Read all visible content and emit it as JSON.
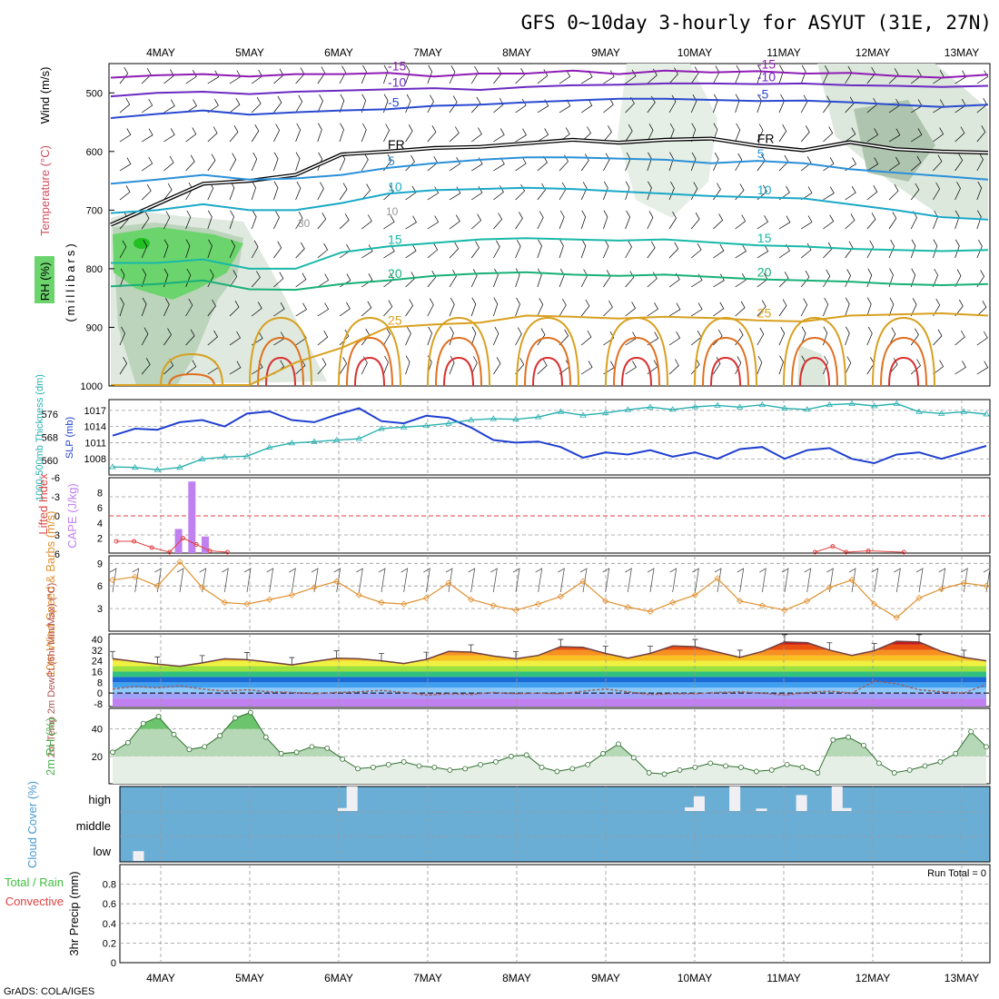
{
  "title": "GFS 0~10day 3-hourly for ASYUT (31E, 27N)",
  "footer": "GrADS: COLA/IGES",
  "colors": {
    "rh_green": "#6cd46c",
    "cloud_blue": "#6aaed6",
    "slp": "#1f3fd0",
    "thick": "#2ab0b0",
    "li": "#e04040",
    "cape": "#c080f0",
    "wind": "#e09030",
    "dew": "#a06060",
    "rh2m": "#50b050"
  },
  "chart_data": [
    {
      "panel": "upper-air cross-section",
      "type": "contour",
      "x_dates": [
        "4MAY",
        "5MAY",
        "6MAY",
        "7MAY",
        "8MAY",
        "9MAY",
        "10MAY",
        "11MAY",
        "12MAY",
        "13MAY"
      ],
      "y_ticks": [
        500,
        600,
        700,
        800,
        900,
        1000
      ],
      "ylabel": "(millibars)",
      "ylabel_series": [
        "RH (%)",
        "Temperature (°C)",
        "Wind (m/s)"
      ],
      "ylim": [
        1000,
        450
      ],
      "temperature_contours": [
        {
          "value": -15,
          "label": "-15",
          "color": "#8e1cb4",
          "p": [
            474,
            470,
            468,
            472,
            468,
            468,
            466,
            472,
            467,
            467,
            462,
            468,
            462,
            465,
            463,
            467,
            466,
            471,
            474,
            469
          ]
        },
        {
          "value": -10,
          "label": "-10",
          "color": "#6a2ac0",
          "p": [
            506,
            500,
            498,
            502,
            498,
            496,
            494,
            492,
            495,
            490,
            487,
            486,
            484,
            484,
            485,
            484,
            487,
            488,
            490,
            488
          ]
        },
        {
          "value": -5,
          "label": "-5",
          "color": "#2a4ad0",
          "p": [
            543,
            536,
            530,
            537,
            533,
            530,
            528,
            522,
            520,
            516,
            513,
            510,
            510,
            512,
            514,
            513,
            516,
            520,
            524,
            520
          ]
        },
        {
          "value": -999,
          "label": "FR",
          "color": "#000000",
          "p": [
            725,
            690,
            655,
            650,
            640,
            605,
            600,
            594,
            592,
            586,
            580,
            585,
            580,
            578,
            590,
            598,
            584,
            596,
            600,
            602
          ]
        },
        {
          "value": 5,
          "label": "5",
          "color": "#2a90d8",
          "p": [
            655,
            648,
            640,
            648,
            646,
            640,
            628,
            620,
            614,
            610,
            610,
            612,
            614,
            620,
            616,
            620,
            630,
            636,
            642,
            648
          ]
        },
        {
          "value": 10,
          "label": "10",
          "color": "#1aa8c8",
          "p": [
            705,
            700,
            690,
            700,
            700,
            688,
            672,
            666,
            664,
            662,
            664,
            668,
            672,
            676,
            678,
            680,
            690,
            700,
            712,
            716
          ]
        },
        {
          "value": 15,
          "label": "15",
          "color": "#18b8a8",
          "p": [
            790,
            790,
            784,
            800,
            800,
            772,
            762,
            756,
            750,
            748,
            750,
            752,
            750,
            755,
            760,
            762,
            766,
            768,
            770,
            768
          ]
        },
        {
          "value": 20,
          "label": "20",
          "color": "#18b078",
          "p": [
            830,
            826,
            820,
            835,
            836,
            826,
            820,
            812,
            808,
            806,
            810,
            812,
            810,
            814,
            818,
            820,
            822,
            826,
            828,
            826
          ]
        },
        {
          "value": 25,
          "label": "25",
          "color": "#d8a020",
          "p": [
            1000,
            1000,
            1000,
            1000,
            960,
            935,
            900,
            895,
            892,
            880,
            882,
            885,
            882,
            884,
            888,
            890,
            880,
            878,
            876,
            880
          ]
        }
      ],
      "rh_shading_levels": [
        "30",
        "10"
      ]
    },
    {
      "panel": "sea level pressure and thickness",
      "type": "line",
      "ylabel_left": "1000-500mb Thickness (dm)",
      "ylabel_right": "SLP (mb)",
      "thickness_ticks": [
        560,
        568,
        576
      ],
      "slp_ticks": [
        1008,
        1011,
        1014,
        1017
      ],
      "series": [
        {
          "name": "SLP (mb)",
          "unit": "mb",
          "values": [
            1012.3,
            1013.6,
            1013.4,
            1014.8,
            1015.2,
            1014.0,
            1016.4,
            1016.8,
            1015.2,
            1014.8,
            1016.2,
            1017.4,
            1015.0,
            1014.6,
            1016.0,
            1015.6,
            1013.8,
            1011.5,
            1011.0,
            1011.2,
            1010.2,
            1008.2,
            1009.2,
            1008.8,
            1009.6,
            1008.4,
            1009.2,
            1008.0,
            1009.8,
            1010.2,
            1008.0,
            1009.6,
            1010.0,
            1008.0,
            1007.2,
            1008.8,
            1009.2,
            1008.0,
            1009.2,
            1010.4
          ]
        },
        {
          "name": "1000-500mb Thickness (dm)",
          "unit": "dm",
          "values": [
            557.8,
            557.6,
            556.8,
            557.6,
            560.5,
            561.2,
            561.5,
            564.5,
            566.0,
            566.5,
            567.0,
            567.5,
            571.0,
            571.5,
            572.0,
            572.8,
            574.0,
            574.4,
            574.2,
            575.0,
            576.8,
            575.6,
            576.4,
            577.5,
            578.4,
            577.6,
            578.5,
            579.0,
            578.4,
            579.2,
            578.0,
            577.6,
            579.2,
            579.6,
            578.8,
            579.6,
            576.8,
            576.2,
            576.8,
            576.0
          ]
        }
      ]
    },
    {
      "panel": "stability",
      "type": "bar+line",
      "ylabel_left": "Lifted Index",
      "ylabel_right": "CAPE (J/kg)",
      "li_ticks": [
        "-6",
        "-3",
        "0",
        "3",
        "6"
      ],
      "cape_ticks": [
        2,
        4,
        6,
        8
      ],
      "cape_bars": [
        {
          "x": 4.2,
          "value": 3.2
        },
        {
          "x": 4.35,
          "value": 9.5
        },
        {
          "x": 4.5,
          "value": 2.2
        }
      ],
      "lifted_index": [
        {
          "x": 3.5,
          "value": 4.0
        },
        {
          "x": 3.7,
          "value": 4.0
        },
        {
          "x": 3.9,
          "value": 5.0
        },
        {
          "x": 4.1,
          "value": 6.0
        },
        {
          "x": 4.25,
          "value": 3.5
        },
        {
          "x": 4.4,
          "value": 4.5
        },
        {
          "x": 4.55,
          "value": 5.5
        },
        {
          "x": 4.75,
          "value": 6.5
        },
        {
          "x": 11.35,
          "value": 6.5
        },
        {
          "x": 11.55,
          "value": 4.8
        },
        {
          "x": 11.7,
          "value": 6.0
        },
        {
          "x": 11.95,
          "value": 5.5
        },
        {
          "x": 12.35,
          "value": 6.2
        }
      ]
    },
    {
      "panel": "10m wind",
      "type": "line",
      "ylabel": "10m Wind Speed & Barbs (m/s)",
      "yticks": [
        3,
        6,
        9
      ],
      "ylim": [
        0,
        10
      ],
      "series": [
        {
          "name": "10m Wind Speed",
          "values": [
            6.8,
            7.2,
            6.0,
            9.2,
            5.8,
            3.8,
            3.6,
            4.2,
            4.8,
            5.8,
            6.6,
            4.8,
            3.8,
            3.6,
            4.4,
            6.4,
            4.2,
            3.4,
            2.8,
            3.6,
            4.6,
            6.6,
            4.0,
            3.2,
            2.6,
            3.8,
            4.8,
            7.0,
            4.0,
            3.4,
            2.8,
            4.0,
            5.8,
            6.8,
            3.6,
            1.8,
            4.4,
            5.6,
            6.4,
            6.0
          ]
        }
      ]
    },
    {
      "panel": "2m temperature and dewpoint",
      "type": "line",
      "ylabel": "2m Temp 2m DewPt (6hr Min/Max) (°C)",
      "yticks": [
        -8,
        0,
        8,
        16,
        24,
        32,
        40
      ],
      "ylim": [
        -10,
        44
      ],
      "series": [
        {
          "name": "2m Temp",
          "values": [
            25.6,
            23.5,
            21.5,
            20.0,
            22.5,
            25.5,
            24.8,
            23.0,
            21.0,
            23.5,
            26.0,
            25.5,
            24.0,
            22.0,
            25.0,
            31.0,
            30.5,
            27.5,
            25.5,
            28.0,
            34.5,
            34.0,
            29.5,
            26.0,
            29.5,
            35.0,
            34.5,
            30.5,
            26.5,
            31.0,
            38.0,
            37.5,
            32.0,
            28.0,
            31.5,
            38.5,
            38.0,
            31.0,
            26.5,
            24.0
          ]
        },
        {
          "name": "2m DewPt",
          "values": [
            3.0,
            5.0,
            4.0,
            5.5,
            3.0,
            1.5,
            2.5,
            1.0,
            0.5,
            -0.5,
            0.5,
            1.0,
            2.0,
            0.5,
            -1.5,
            -0.5,
            -1.0,
            0.5,
            -0.5,
            0.0,
            -0.5,
            1.5,
            3.0,
            1.0,
            -1.0,
            -0.5,
            -0.5,
            0.5,
            1.0,
            0.0,
            -1.5,
            0.5,
            1.5,
            0.0,
            9.0,
            7.0,
            2.5,
            1.0,
            0.0,
            6.5
          ]
        }
      ]
    },
    {
      "panel": "2m relative humidity",
      "type": "area",
      "ylabel": "2m RH (%)",
      "yticks": [
        20,
        40
      ],
      "ylim": [
        0,
        55
      ],
      "series": [
        {
          "name": "2m RH",
          "values": [
            23,
            30,
            44,
            49,
            36,
            25,
            27,
            35,
            48,
            52,
            34,
            22,
            23,
            27,
            26,
            18,
            11,
            12,
            14,
            16,
            13,
            12,
            10,
            11,
            14,
            16,
            20,
            21,
            12,
            9,
            11,
            14,
            22,
            29,
            19,
            8,
            7,
            10,
            12,
            15,
            13,
            12,
            9,
            10,
            14,
            12,
            8,
            32,
            34,
            28,
            15,
            8,
            10,
            13,
            16,
            22,
            38,
            27
          ]
        }
      ]
    },
    {
      "panel": "cloud cover",
      "type": "bar",
      "ylabel": "Cloud Cover (%)",
      "ytick_labels": [
        "high",
        "middle",
        "low"
      ],
      "bars": [
        {
          "layer": "low",
          "x": 3.75,
          "value": 40
        },
        {
          "layer": "high",
          "x": 6.05,
          "value": 12
        },
        {
          "layer": "high",
          "x": 6.15,
          "value": 100
        },
        {
          "layer": "high",
          "x": 9.95,
          "value": 15
        },
        {
          "layer": "high",
          "x": 10.05,
          "value": 60
        },
        {
          "layer": "high",
          "x": 10.45,
          "value": 100
        },
        {
          "layer": "high",
          "x": 10.75,
          "value": 10
        },
        {
          "layer": "high",
          "x": 11.2,
          "value": 65
        },
        {
          "layer": "high",
          "x": 11.6,
          "value": 100
        },
        {
          "layer": "high",
          "x": 11.7,
          "value": 12
        }
      ]
    },
    {
      "panel": "precipitation",
      "type": "bar",
      "ylabel": "3hr Precip (mm)",
      "legend_labels": [
        "Total / Rain",
        "Convective"
      ],
      "yticks": [
        "0",
        "0.2",
        "0.4",
        "0.6",
        "0.8"
      ],
      "ylim": [
        0,
        1
      ],
      "annotation": "Run Total = 0",
      "values": []
    }
  ]
}
